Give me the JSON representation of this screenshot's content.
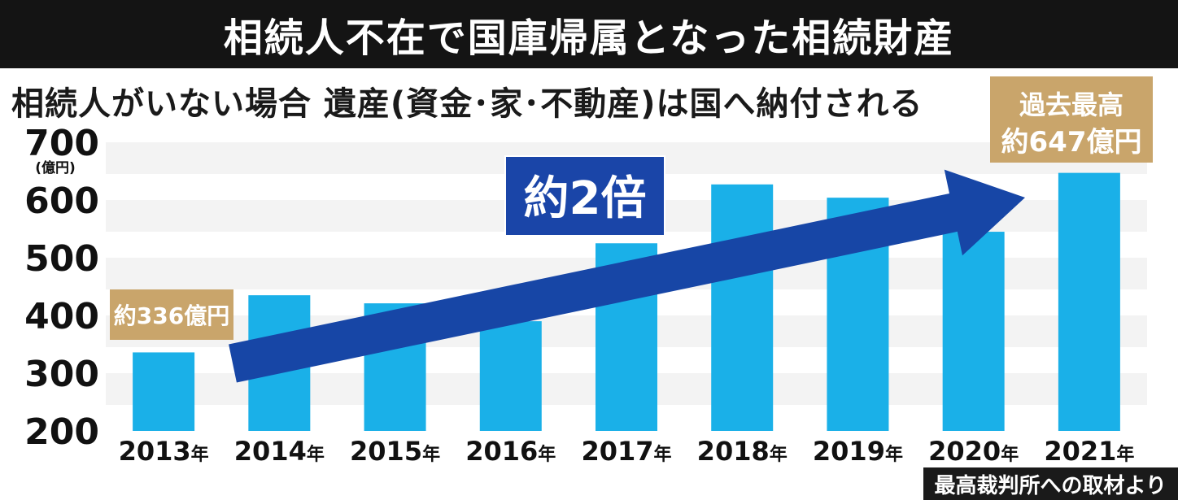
{
  "header": {
    "title": "相続人不在で国庫帰属となった相続財産",
    "subtitle": "相続人がいない場合 遺産(資金･家･不動産)は国へ納付される"
  },
  "source": "最高裁判所への取材より",
  "chart_data": {
    "type": "bar",
    "categories": [
      "2013年",
      "2014年",
      "2015年",
      "2016年",
      "2017年",
      "2018年",
      "2019年",
      "2020年",
      "2021年"
    ],
    "values": [
      336,
      435,
      421,
      390,
      525,
      627,
      604,
      545,
      647
    ],
    "ylim": [
      200,
      700
    ],
    "yticks": [
      "200",
      "300",
      "400",
      "500",
      "600",
      "700"
    ],
    "yunit": "(億円)",
    "grid": "horizontal bands",
    "colors": {
      "bar": "#1ab0e8",
      "arrow": "#1746a6",
      "label_box": "#c9a56b",
      "badge": "#1a45a8"
    },
    "annotations": {
      "first": "約336億円",
      "max_line1": "過去最高",
      "max_line2": "約647億円",
      "ratio": "約2倍"
    }
  }
}
